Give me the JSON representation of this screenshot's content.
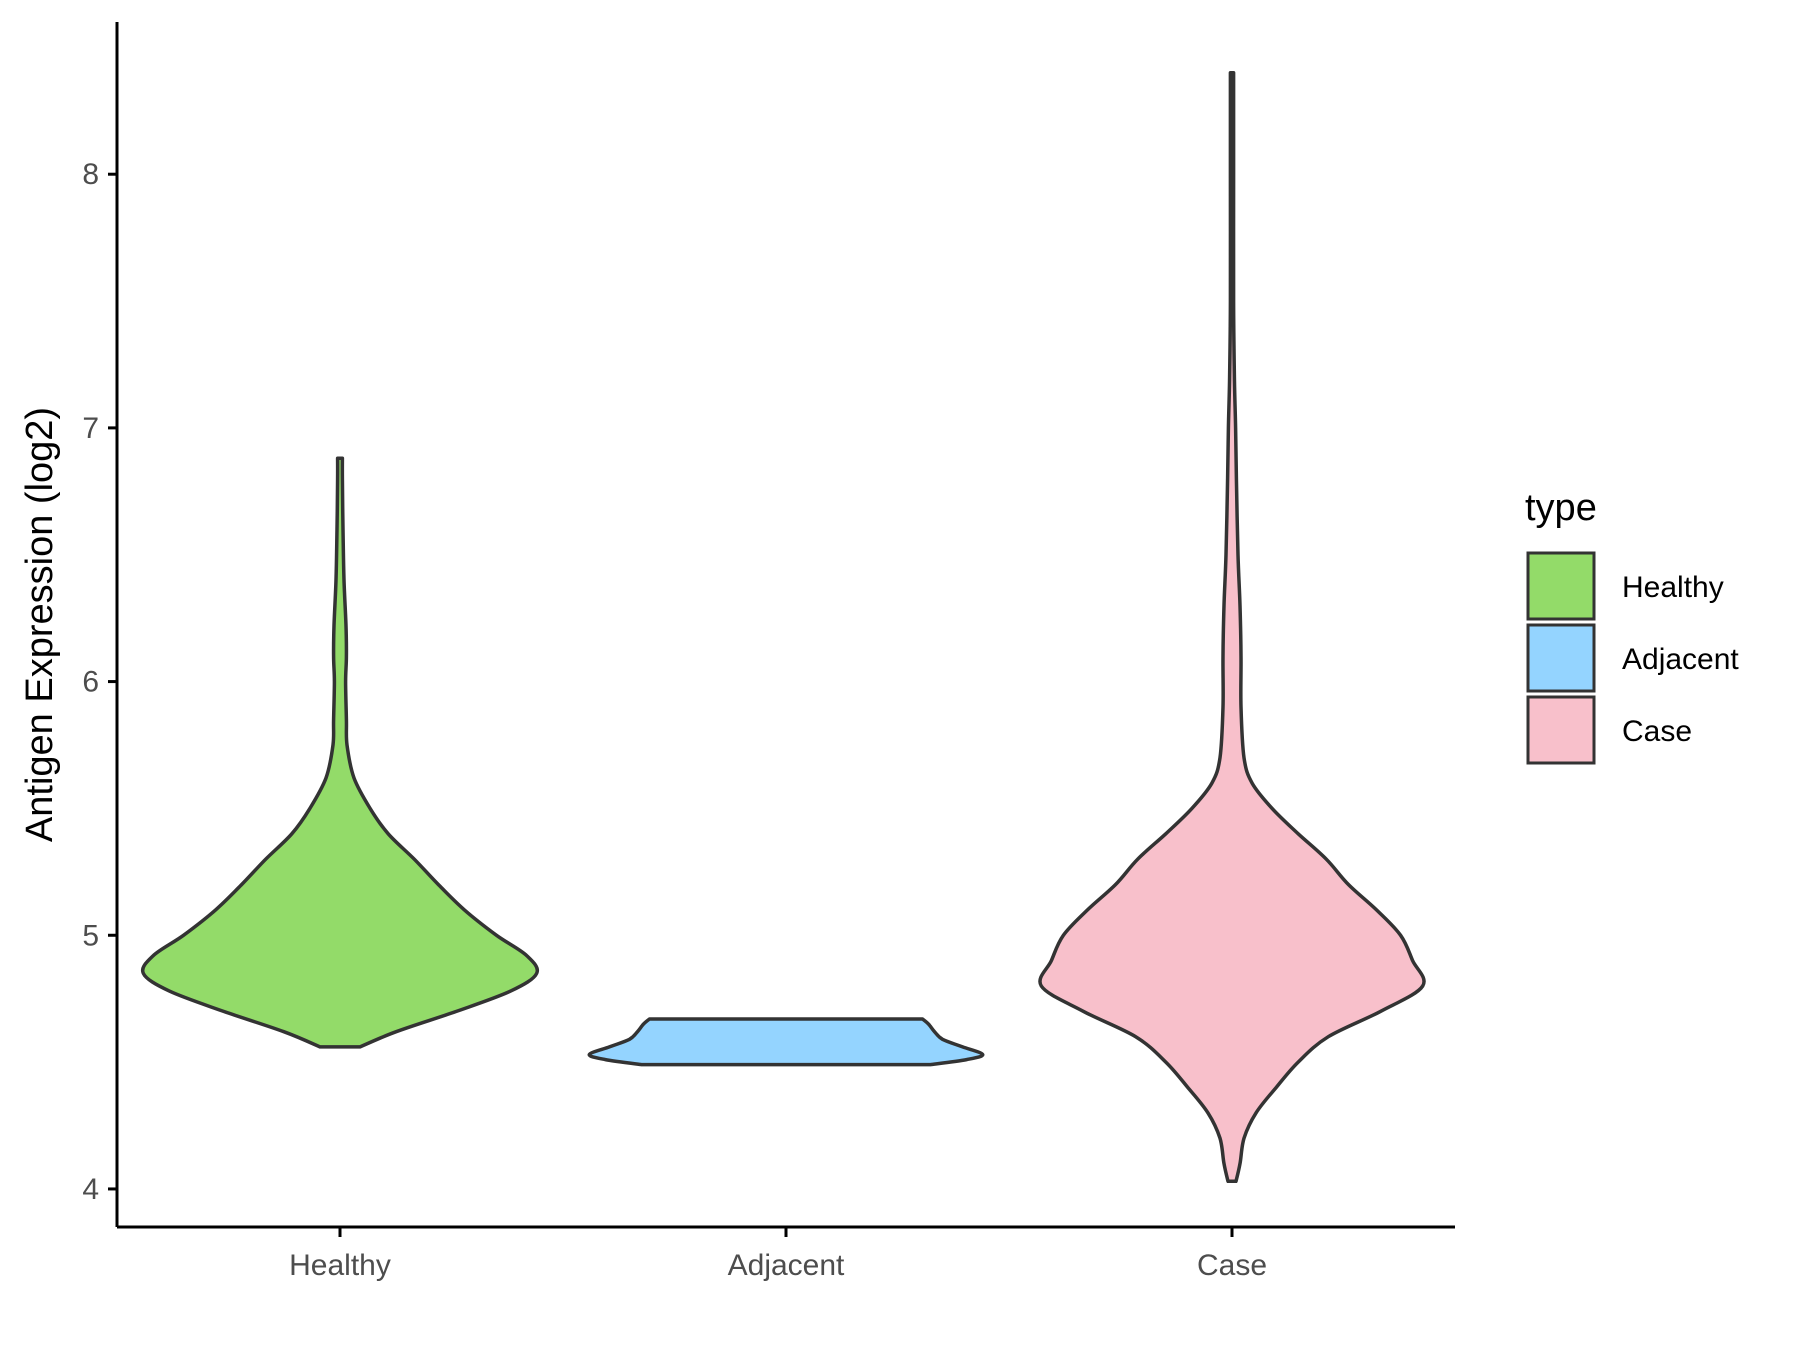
{
  "chart_data": {
    "type": "violin",
    "title": "",
    "xlabel": "",
    "ylabel": "Antigen Expression (log2)",
    "ylim": [
      3.85,
      8.6
    ],
    "yticks": [
      4,
      5,
      6,
      7,
      8
    ],
    "categories": [
      "Healthy",
      "Adjacent",
      "Case"
    ],
    "grid": false,
    "legend": {
      "title": "type",
      "position": "right",
      "entries": [
        "Healthy",
        "Adjacent",
        "Case"
      ]
    },
    "series": [
      {
        "category": "Healthy",
        "color": "#93DB69",
        "profile": [
          [
            4.56,
            0.1
          ],
          [
            4.62,
            0.28
          ],
          [
            4.7,
            0.58
          ],
          [
            4.78,
            0.85
          ],
          [
            4.85,
            0.98
          ],
          [
            4.92,
            0.93
          ],
          [
            5.0,
            0.78
          ],
          [
            5.1,
            0.62
          ],
          [
            5.2,
            0.49
          ],
          [
            5.3,
            0.37
          ],
          [
            5.4,
            0.24
          ],
          [
            5.5,
            0.15
          ],
          [
            5.62,
            0.07
          ],
          [
            5.75,
            0.035
          ],
          [
            5.85,
            0.032
          ],
          [
            6.0,
            0.028
          ],
          [
            6.1,
            0.032
          ],
          [
            6.22,
            0.03
          ],
          [
            6.4,
            0.02
          ],
          [
            6.6,
            0.015
          ],
          [
            6.8,
            0.012
          ],
          [
            6.88,
            0.012
          ]
        ]
      },
      {
        "category": "Adjacent",
        "color": "#94D4FF",
        "profile": [
          [
            4.49,
            0.72
          ],
          [
            4.51,
            0.9
          ],
          [
            4.53,
            0.98
          ],
          [
            4.56,
            0.88
          ],
          [
            4.59,
            0.78
          ],
          [
            4.62,
            0.74
          ],
          [
            4.65,
            0.71
          ],
          [
            4.67,
            0.68
          ]
        ]
      },
      {
        "category": "Case",
        "color": "#F8C0CB",
        "profile": [
          [
            4.03,
            0.02
          ],
          [
            4.1,
            0.04
          ],
          [
            4.2,
            0.06
          ],
          [
            4.3,
            0.12
          ],
          [
            4.4,
            0.22
          ],
          [
            4.5,
            0.33
          ],
          [
            4.6,
            0.48
          ],
          [
            4.7,
            0.74
          ],
          [
            4.8,
            0.95
          ],
          [
            4.9,
            0.9
          ],
          [
            5.0,
            0.84
          ],
          [
            5.1,
            0.72
          ],
          [
            5.2,
            0.58
          ],
          [
            5.3,
            0.47
          ],
          [
            5.4,
            0.33
          ],
          [
            5.5,
            0.2
          ],
          [
            5.6,
            0.1
          ],
          [
            5.7,
            0.06
          ],
          [
            5.9,
            0.045
          ],
          [
            6.1,
            0.045
          ],
          [
            6.3,
            0.04
          ],
          [
            6.5,
            0.03
          ],
          [
            6.8,
            0.022
          ],
          [
            7.0,
            0.018
          ],
          [
            7.2,
            0.012
          ],
          [
            7.5,
            0.008
          ],
          [
            8.0,
            0.008
          ],
          [
            8.4,
            0.008
          ]
        ]
      }
    ]
  }
}
